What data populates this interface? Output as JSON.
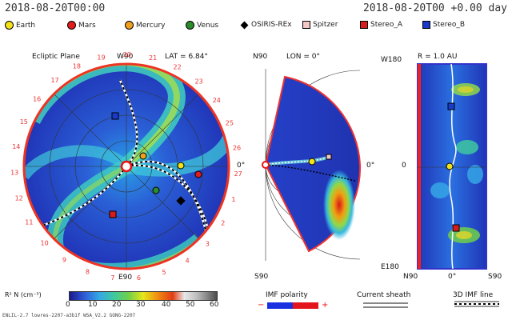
{
  "header": {
    "date_left": "2018-08-20T00:00",
    "date_right": "2018-08-20T00 +0.00 day"
  },
  "legend": [
    {
      "label": "Earth",
      "shape": "dot",
      "color": "#f2e21a"
    },
    {
      "label": "Mars",
      "shape": "dot",
      "color": "#e21b1b"
    },
    {
      "label": "Mercury",
      "shape": "dot",
      "color": "#f0a020"
    },
    {
      "label": "Venus",
      "shape": "dot",
      "color": "#2a8c2a"
    },
    {
      "label": "OSIRIS-REx",
      "shape": "diamond",
      "color": "#000000"
    },
    {
      "label": "Spitzer",
      "shape": "square",
      "color": "#f4c6c6"
    },
    {
      "label": "Stereo_A",
      "shape": "square",
      "color": "#d81b1b"
    },
    {
      "label": "Stereo_B",
      "shape": "square",
      "color": "#1a3bc8"
    }
  ],
  "ecliptic": {
    "title": "Ecliptic Plane",
    "lat_label": "LAT = 6.84°",
    "top_label": "W90",
    "bottom_label": "E90",
    "right_label": "0°",
    "rotation_numbers": [
      "19",
      "20",
      "21",
      "22",
      "23",
      "24",
      "25",
      "26",
      "27",
      "1",
      "2",
      "3",
      "4",
      "5",
      "6",
      "7",
      "8",
      "9",
      "10",
      "11",
      "12",
      "13",
      "14",
      "15",
      "16",
      "17",
      "18"
    ]
  },
  "meridional": {
    "top_label": "N90",
    "bottom_label": "S90",
    "lon_label": "LON = 0°",
    "right_label": "0°"
  },
  "radial": {
    "title": "R = 1.0 AU",
    "top_label": "W180",
    "mid_label": "0",
    "bottom_label": "E180",
    "x_left": "N90",
    "x_mid": "0°",
    "x_right": "S90"
  },
  "colorbar": {
    "label": "R² N (cm⁻³)",
    "ticks": [
      "0",
      "10",
      "20",
      "30",
      "40",
      "50",
      "60"
    ],
    "range": [
      0,
      60
    ]
  },
  "imf": {
    "title": "IMF polarity",
    "minus": "−",
    "plus": "+",
    "neg_color": "#1a2fe0",
    "pos_color": "#e3141b"
  },
  "sheath": {
    "title": "Current sheath"
  },
  "imfline": {
    "title": "3D IMF line"
  },
  "footer": "ENLIL-2.7 lowres-2207-a3b1f WSA_V2.2 GONG-2207"
}
